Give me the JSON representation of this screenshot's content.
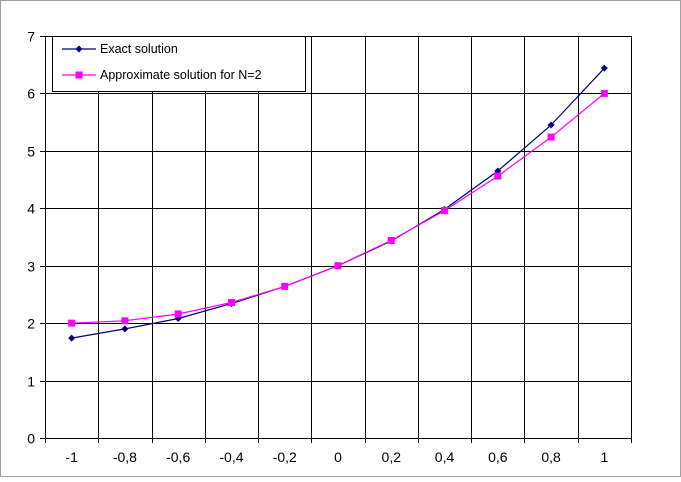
{
  "chart_data": {
    "type": "line",
    "title": "",
    "xlabel": "",
    "ylabel": "",
    "xlim": [
      -1.1,
      1.1
    ],
    "ylim": [
      0,
      7
    ],
    "grid": true,
    "legend_position": "top-left",
    "x_ticks": [
      -1,
      -0.8,
      -0.6,
      -0.4,
      -0.2,
      0,
      0.2,
      0.4,
      0.6,
      0.8,
      1
    ],
    "x_tick_labels": [
      "-1",
      "-0,8",
      "-0,6",
      "-0,4",
      "-0,2",
      "0",
      "0,2",
      "0,4",
      "0,6",
      "0,8",
      "1"
    ],
    "y_ticks": [
      0,
      1,
      2,
      3,
      4,
      5,
      6,
      7
    ],
    "y_tick_labels": [
      "0",
      "1",
      "2",
      "3",
      "4",
      "5",
      "6",
      "7"
    ],
    "x": [
      -1,
      -0.8,
      -0.6,
      -0.4,
      -0.2,
      0,
      0.2,
      0.4,
      0.6,
      0.8,
      1
    ],
    "series": [
      {
        "name": "Exact solution",
        "color": "#000080",
        "marker": "diamond",
        "values": [
          1.74,
          1.9,
          2.08,
          2.34,
          2.64,
          3.0,
          3.43,
          3.98,
          4.65,
          5.45,
          6.44
        ]
      },
      {
        "name": "Approximate solution for N=2",
        "color": "#ff00ff",
        "marker": "square",
        "values": [
          2.0,
          2.04,
          2.16,
          2.36,
          2.64,
          3.0,
          3.44,
          3.96,
          4.56,
          5.24,
          6.0
        ]
      }
    ]
  }
}
